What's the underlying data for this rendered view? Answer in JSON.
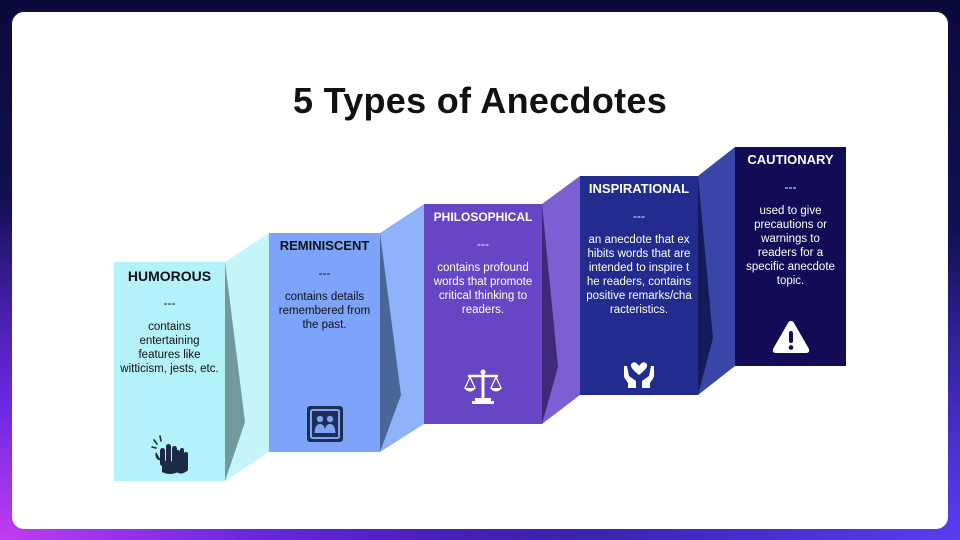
{
  "title": "5 Types of Anecdotes",
  "steps": [
    {
      "label": "HUMOROUS",
      "separator": "---",
      "description": "contains entertaining features like witticism, jests, etc.",
      "icon": "clapping-hands-icon",
      "color": "#b3f1fb"
    },
    {
      "label": "REMINISCENT",
      "separator": "---",
      "description": "contains details remembered from the past.",
      "icon": "family-photo-icon",
      "color": "#7da3fb"
    },
    {
      "label": "PHILOSOPHICAL",
      "separator": "---",
      "description": "contains profound words that promote critical thinking to readers.",
      "icon": "scales-icon",
      "color": "#6746c5"
    },
    {
      "label": "INSPIRATIONAL",
      "separator": "---",
      "description": "an anecdote that exhibits words that are intended to inspire the readers, contains positive remarks/characteristics.",
      "icon": "hands-heart-icon",
      "color": "#222b8e"
    },
    {
      "label": "CAUTIONARY",
      "separator": "---",
      "description": "used to give precautions or warnings to readers for a specific anecdote topic.",
      "icon": "warning-icon",
      "color": "#130b55"
    }
  ]
}
